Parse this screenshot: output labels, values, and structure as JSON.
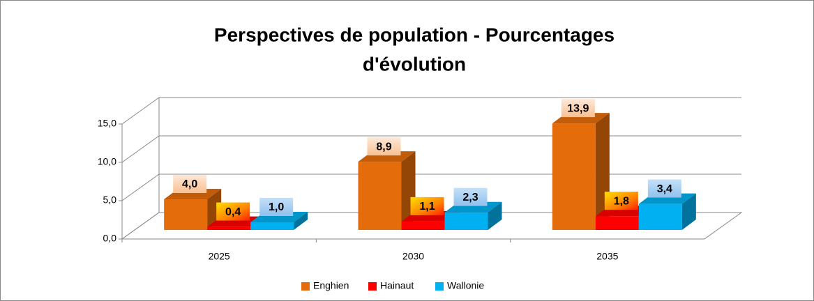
{
  "chart_data": {
    "type": "bar3d",
    "title": [
      "Perspectives de population - Pourcentages",
      "d'évolution"
    ],
    "categories": [
      "2025",
      "2030",
      "2035"
    ],
    "series": [
      {
        "name": "Enghien",
        "color": "#e46c0a",
        "values": [
          4.0,
          8.9,
          13.9
        ],
        "value_labels": [
          "4,0",
          "8,9",
          "13,9"
        ]
      },
      {
        "name": "Hainaut",
        "color": "#ff0000",
        "values": [
          0.4,
          1.1,
          1.8
        ],
        "value_labels": [
          "0,4",
          "1,1",
          "1,8"
        ]
      },
      {
        "name": "Wallonie",
        "color": "#00b0f0",
        "values": [
          1.0,
          2.3,
          3.4
        ],
        "value_labels": [
          "1,0",
          "2,3",
          "3,4"
        ]
      }
    ],
    "ylim": [
      0,
      15
    ],
    "yticks": [
      {
        "value": 0,
        "label": "0,0"
      },
      {
        "value": 5,
        "label": "5,0"
      },
      {
        "value": 10,
        "label": "10,0"
      },
      {
        "value": 15,
        "label": "15,0"
      }
    ],
    "grid": true,
    "legend": "bottom"
  }
}
